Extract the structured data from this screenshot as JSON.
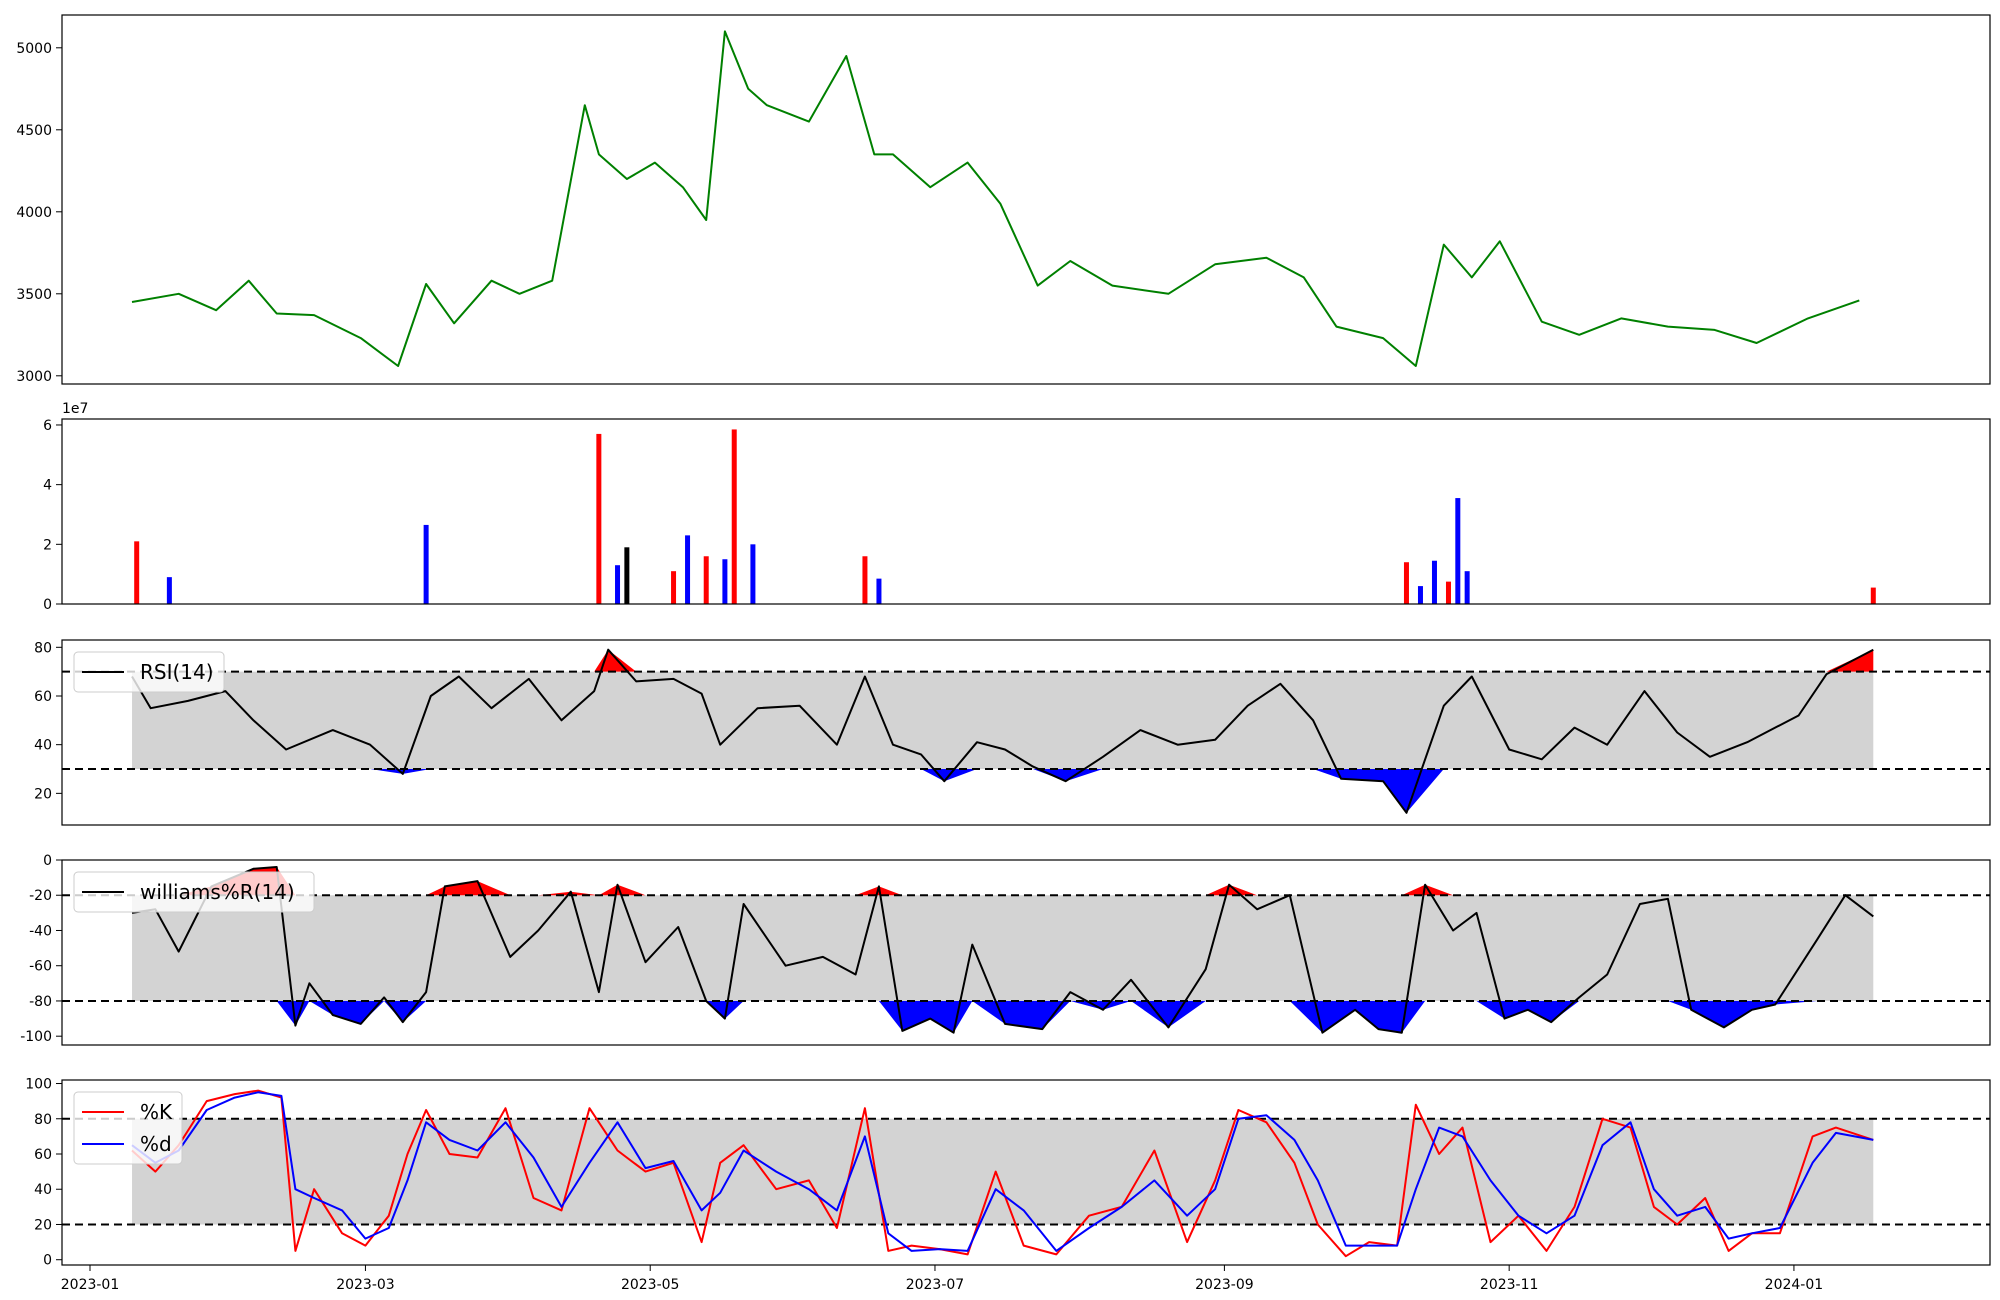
{
  "colors": {
    "price": "#008000",
    "up": "#ff0000",
    "down": "#0000ff",
    "neutral": "#000000",
    "band": "#d3d3d3",
    "k": "#ff0000",
    "d": "#0000ff"
  },
  "x_axis": {
    "ticks": [
      "2023-01",
      "2023-03",
      "2023-05",
      "2023-07",
      "2023-09",
      "2023-11",
      "2024-01"
    ]
  },
  "chart_data": [
    {
      "name": "price",
      "type": "line",
      "yticks": [
        "3000",
        "3500",
        "4000",
        "4500",
        "5000"
      ],
      "ylim": [
        2950,
        5200
      ],
      "x": [
        "2023-01-10",
        "2023-01-20",
        "2023-01-28",
        "2023-02-04",
        "2023-02-10",
        "2023-02-18",
        "2023-02-28",
        "2023-03-08",
        "2023-03-14",
        "2023-03-20",
        "2023-03-28",
        "2023-04-03",
        "2023-04-10",
        "2023-04-17",
        "2023-04-20",
        "2023-04-26",
        "2023-05-02",
        "2023-05-08",
        "2023-05-13",
        "2023-05-17",
        "2023-05-22",
        "2023-05-26",
        "2023-06-04",
        "2023-06-12",
        "2023-06-18",
        "2023-06-22",
        "2023-06-30",
        "2023-07-08",
        "2023-07-15",
        "2023-07-23",
        "2023-07-30",
        "2023-08-08",
        "2023-08-20",
        "2023-08-30",
        "2023-09-10",
        "2023-09-18",
        "2023-09-25",
        "2023-10-05",
        "2023-10-12",
        "2023-10-18",
        "2023-10-24",
        "2023-10-30",
        "2023-11-08",
        "2023-11-16",
        "2023-11-25",
        "2023-12-05",
        "2023-12-15",
        "2023-12-24",
        "2024-01-04",
        "2024-01-15"
      ],
      "y": [
        3450,
        3500,
        3400,
        3580,
        3380,
        3370,
        3230,
        3060,
        3560,
        3320,
        3580,
        3500,
        3580,
        4650,
        4350,
        4200,
        4300,
        4150,
        3950,
        5100,
        4750,
        4650,
        4550,
        4950,
        4350,
        4350,
        4150,
        4300,
        4050,
        3550,
        3700,
        3550,
        3500,
        3680,
        3720,
        3600,
        3300,
        3230,
        3060,
        3800,
        3600,
        3820,
        3330,
        3250,
        3350,
        3300,
        3280,
        3200,
        3350,
        3460
      ]
    },
    {
      "name": "volume",
      "type": "bar",
      "offset_label": "1e7",
      "yticks": [
        "0",
        "2",
        "4",
        "6"
      ],
      "ylim": [
        0,
        6.2
      ],
      "x": [
        "2023-01-11",
        "2023-01-18",
        "2023-03-14",
        "2023-04-20",
        "2023-04-24",
        "2023-04-26",
        "2023-05-06",
        "2023-05-09",
        "2023-05-13",
        "2023-05-17",
        "2023-05-19",
        "2023-05-23",
        "2023-06-16",
        "2023-06-19",
        "2023-10-10",
        "2023-10-13",
        "2023-10-16",
        "2023-10-19",
        "2023-10-21",
        "2023-10-23",
        "2024-01-18"
      ],
      "y": [
        2.1,
        0.9,
        2.65,
        5.7,
        1.3,
        1.9,
        1.1,
        2.3,
        1.6,
        1.5,
        5.85,
        2.0,
        1.6,
        0.85,
        1.4,
        0.6,
        1.45,
        0.75,
        3.55,
        1.1,
        0.55
      ],
      "dir": [
        "up",
        "down",
        "down",
        "up",
        "down",
        "neutral",
        "up",
        "down",
        "up",
        "down",
        "up",
        "down",
        "up",
        "down",
        "up",
        "down",
        "down",
        "up",
        "down",
        "down",
        "up"
      ]
    },
    {
      "name": "rsi",
      "type": "line",
      "legend": [
        "RSI(14)"
      ],
      "yticks": [
        "20",
        "40",
        "60",
        "80"
      ],
      "ylim": [
        7,
        83
      ],
      "bands": [
        30,
        70
      ],
      "x": [
        "2023-01-10",
        "2023-01-14",
        "2023-01-22",
        "2023-01-30",
        "2023-02-05",
        "2023-02-12",
        "2023-02-22",
        "2023-03-02",
        "2023-03-09",
        "2023-03-15",
        "2023-03-21",
        "2023-03-28",
        "2023-04-05",
        "2023-04-12",
        "2023-04-19",
        "2023-04-22",
        "2023-04-28",
        "2023-05-06",
        "2023-05-12",
        "2023-05-16",
        "2023-05-24",
        "2023-06-02",
        "2023-06-10",
        "2023-06-16",
        "2023-06-22",
        "2023-06-28",
        "2023-07-03",
        "2023-07-10",
        "2023-07-16",
        "2023-07-22",
        "2023-07-29",
        "2023-08-06",
        "2023-08-14",
        "2023-08-22",
        "2023-08-30",
        "2023-09-06",
        "2023-09-13",
        "2023-09-20",
        "2023-09-26",
        "2023-10-05",
        "2023-10-10",
        "2023-10-18",
        "2023-10-24",
        "2023-11-01",
        "2023-11-08",
        "2023-11-15",
        "2023-11-22",
        "2023-11-30",
        "2023-12-07",
        "2023-12-14",
        "2023-12-22",
        "2024-01-02",
        "2024-01-08",
        "2024-01-18"
      ],
      "y": [
        68,
        55,
        58,
        62,
        50,
        38,
        46,
        40,
        28,
        60,
        68,
        55,
        67,
        50,
        62,
        79,
        66,
        67,
        61,
        40,
        55,
        56,
        40,
        68,
        40,
        36,
        25,
        41,
        38,
        31,
        25,
        35,
        46,
        40,
        42,
        56,
        65,
        50,
        26,
        25,
        12,
        56,
        68,
        38,
        34,
        47,
        40,
        62,
        45,
        35,
        41,
        52,
        69,
        79
      ]
    },
    {
      "name": "williams",
      "type": "line",
      "legend": [
        "williams%R(14)"
      ],
      "yticks": [
        "0",
        "-20",
        "-40",
        "-60",
        "-80",
        "-100"
      ],
      "ylim": [
        -105,
        0
      ],
      "bands": [
        -80,
        -20
      ],
      "x": [
        "2023-01-10",
        "2023-01-15",
        "2023-01-20",
        "2023-01-27",
        "2023-02-05",
        "2023-02-10",
        "2023-02-14",
        "2023-02-17",
        "2023-02-22",
        "2023-02-28",
        "2023-03-05",
        "2023-03-09",
        "2023-03-14",
        "2023-03-18",
        "2023-03-25",
        "2023-04-01",
        "2023-04-07",
        "2023-04-14",
        "2023-04-20",
        "2023-04-24",
        "2023-04-30",
        "2023-05-07",
        "2023-05-13",
        "2023-05-17",
        "2023-05-21",
        "2023-05-30",
        "2023-06-07",
        "2023-06-14",
        "2023-06-19",
        "2023-06-24",
        "2023-06-30",
        "2023-07-05",
        "2023-07-09",
        "2023-07-16",
        "2023-07-24",
        "2023-07-30",
        "2023-08-06",
        "2023-08-12",
        "2023-08-20",
        "2023-08-28",
        "2023-09-02",
        "2023-09-08",
        "2023-09-15",
        "2023-09-22",
        "2023-09-29",
        "2023-10-04",
        "2023-10-09",
        "2023-10-14",
        "2023-10-20",
        "2023-10-25",
        "2023-10-31",
        "2023-11-05",
        "2023-11-10",
        "2023-11-16",
        "2023-11-22",
        "2023-11-29",
        "2023-12-05",
        "2023-12-10",
        "2023-12-17",
        "2023-12-23",
        "2023-12-28",
        "2024-01-06",
        "2024-01-12",
        "2024-01-18"
      ],
      "y": [
        -30,
        -28,
        -52,
        -15,
        -5,
        -4,
        -94,
        -70,
        -88,
        -93,
        -78,
        -92,
        -75,
        -15,
        -12,
        -55,
        -40,
        -18,
        -75,
        -14,
        -58,
        -38,
        -80,
        -90,
        -25,
        -60,
        -55,
        -65,
        -15,
        -97,
        -90,
        -98,
        -48,
        -93,
        -96,
        -75,
        -85,
        -68,
        -95,
        -62,
        -14,
        -28,
        -20,
        -98,
        -85,
        -96,
        -98,
        -14,
        -40,
        -30,
        -90,
        -85,
        -92,
        -78,
        -65,
        -25,
        -22,
        -85,
        -95,
        -85,
        -82,
        -45,
        -20,
        -32
      ]
    },
    {
      "name": "stochastic",
      "type": "line",
      "legend": [
        "%K",
        "%d"
      ],
      "yticks": [
        "0",
        "20",
        "40",
        "60",
        "80",
        "100"
      ],
      "ylim": [
        -3,
        102
      ],
      "bands": [
        20,
        80
      ],
      "x": [
        "2023-01-10",
        "2023-01-15",
        "2023-01-20",
        "2023-01-26",
        "2023-02-01",
        "2023-02-06",
        "2023-02-11",
        "2023-02-14",
        "2023-02-18",
        "2023-02-24",
        "2023-03-01",
        "2023-03-06",
        "2023-03-10",
        "2023-03-14",
        "2023-03-19",
        "2023-03-25",
        "2023-03-31",
        "2023-04-06",
        "2023-04-12",
        "2023-04-18",
        "2023-04-24",
        "2023-04-30",
        "2023-05-06",
        "2023-05-12",
        "2023-05-16",
        "2023-05-21",
        "2023-05-28",
        "2023-06-04",
        "2023-06-10",
        "2023-06-16",
        "2023-06-21",
        "2023-06-26",
        "2023-07-02",
        "2023-07-08",
        "2023-07-14",
        "2023-07-20",
        "2023-07-27",
        "2023-08-03",
        "2023-08-10",
        "2023-08-17",
        "2023-08-24",
        "2023-08-30",
        "2023-09-04",
        "2023-09-10",
        "2023-09-16",
        "2023-09-21",
        "2023-09-27",
        "2023-10-02",
        "2023-10-08",
        "2023-10-12",
        "2023-10-17",
        "2023-10-22",
        "2023-10-28",
        "2023-11-03",
        "2023-11-09",
        "2023-11-15",
        "2023-11-21",
        "2023-11-27",
        "2023-12-02",
        "2023-12-07",
        "2023-12-13",
        "2023-12-18",
        "2023-12-23",
        "2023-12-29",
        "2024-01-05",
        "2024-01-10",
        "2024-01-18"
      ],
      "k": [
        62,
        50,
        65,
        90,
        94,
        96,
        92,
        5,
        40,
        15,
        8,
        25,
        60,
        85,
        60,
        58,
        86,
        35,
        28,
        86,
        62,
        50,
        55,
        10,
        55,
        65,
        40,
        45,
        18,
        86,
        5,
        8,
        6,
        3,
        50,
        8,
        3,
        25,
        30,
        62,
        10,
        45,
        85,
        78,
        55,
        20,
        2,
        10,
        8,
        88,
        60,
        75,
        10,
        25,
        5,
        30,
        80,
        75,
        30,
        20,
        35,
        5,
        15,
        15,
        70,
        75,
        68
      ],
      "d": [
        65,
        55,
        62,
        85,
        92,
        95,
        93,
        40,
        35,
        28,
        12,
        18,
        45,
        78,
        68,
        62,
        78,
        58,
        30,
        55,
        78,
        52,
        56,
        28,
        38,
        62,
        50,
        40,
        28,
        70,
        15,
        5,
        6,
        5,
        40,
        28,
        5,
        18,
        30,
        45,
        25,
        40,
        80,
        82,
        68,
        45,
        8,
        8,
        8,
        40,
        75,
        70,
        45,
        25,
        15,
        25,
        65,
        78,
        40,
        25,
        30,
        12,
        15,
        18,
        55,
        72,
        68
      ]
    }
  ]
}
